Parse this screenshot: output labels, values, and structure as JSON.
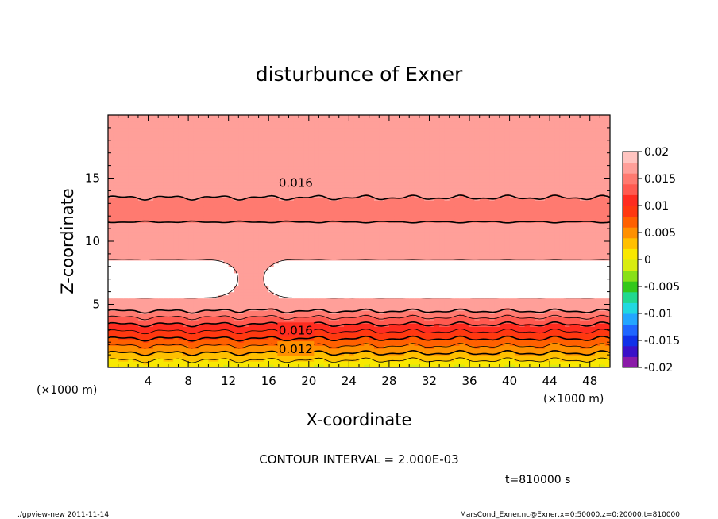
{
  "chart_data": {
    "type": "heatmap",
    "title": "disturbunce of Exner",
    "xlabel": "X-coordinate",
    "ylabel": "Z-coordinate",
    "x_unit_left": "(×1000 m)",
    "x_unit_right": "(×1000 m)",
    "xlim": [
      0,
      50
    ],
    "ylim": [
      0,
      20
    ],
    "x_ticks": [
      4,
      8,
      12,
      16,
      20,
      24,
      28,
      32,
      36,
      40,
      44,
      48
    ],
    "y_ticks": [
      5,
      10,
      15
    ],
    "contour_labels": [
      {
        "text": "0.016",
        "x": 18.7,
        "z": 14.7
      },
      {
        "text": "0.016",
        "x": 18.7,
        "z": 3.0
      },
      {
        "text": "0.012",
        "x": 18.7,
        "z": 1.5
      }
    ],
    "colorbar": {
      "labels": [
        "0.02",
        "0.015",
        "0.01",
        "0.005",
        "0",
        "-0.005",
        "-0.01",
        "-0.015",
        "-0.02"
      ],
      "min": -0.02,
      "max": 0.02,
      "colors": [
        "#8a1aa8",
        "#3a10c8",
        "#1030e8",
        "#1f66ff",
        "#23a6ff",
        "#20d8e0",
        "#20d890",
        "#33c81a",
        "#88e018",
        "#d8ec10",
        "#f8e800",
        "#ffc000",
        "#ff9000",
        "#ff6000",
        "#ff3810",
        "#ff2c20",
        "#ff5a50",
        "#ff7a70",
        "#ff9f99",
        "#ffc4c0"
      ]
    },
    "contour_interval": "CONTOUR INTERVAL = 2.000E-03",
    "time": "t=810000 s"
  },
  "footer": {
    "left": "./gpview-new  2011-11-14",
    "right": "MarsCond_Exner.nc@Exner,x=0:50000,z=0:20000,t=810000"
  }
}
